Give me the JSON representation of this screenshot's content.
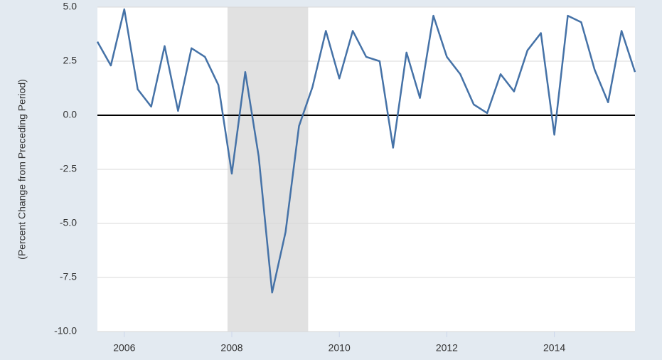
{
  "chart_data": {
    "type": "line",
    "y_label": "(Percent Change from Preceding Period)",
    "x": [
      2005.5,
      2005.75,
      2006,
      2006.25,
      2006.5,
      2006.75,
      2007,
      2007.25,
      2007.5,
      2007.75,
      2008,
      2008.25,
      2008.5,
      2008.75,
      2009,
      2009.25,
      2009.5,
      2009.75,
      2010,
      2010.25,
      2010.5,
      2010.75,
      2011,
      2011.25,
      2011.5,
      2011.75,
      2012,
      2012.25,
      2012.5,
      2012.75,
      2013,
      2013.25,
      2013.5,
      2013.75,
      2014,
      2014.25,
      2014.5,
      2014.75,
      2015,
      2015.25,
      2015.5
    ],
    "series": [
      {
        "color": "#4572a7",
        "values": [
          3.4,
          2.3,
          4.9,
          1.2,
          0.4,
          3.2,
          0.2,
          3.1,
          2.7,
          1.4,
          -2.7,
          2.0,
          -1.9,
          -8.2,
          -5.4,
          -0.5,
          1.3,
          3.9,
          1.7,
          3.9,
          2.7,
          2.5,
          -1.5,
          2.9,
          0.8,
          4.6,
          2.7,
          1.9,
          0.5,
          0.1,
          1.9,
          1.1,
          3.0,
          3.8,
          -0.9,
          4.6,
          4.3,
          2.1,
          0.6,
          3.9,
          2.0
        ]
      }
    ],
    "xlim": [
      2005.5,
      2015.5
    ],
    "xticks": [
      2006,
      2008,
      2010,
      2012,
      2014
    ],
    "ylim": [
      -10,
      5
    ],
    "yticks": [
      {
        "value": 5,
        "label": "5.0"
      },
      {
        "value": 2.5,
        "label": "2.5"
      },
      {
        "value": 0,
        "label": "0.0"
      },
      {
        "value": -2.5,
        "label": "-2.5"
      },
      {
        "value": -5,
        "label": "-5.0"
      },
      {
        "value": -7.5,
        "label": "-7.5"
      },
      {
        "value": -10,
        "label": "-10.0"
      }
    ],
    "shaded_regions": [
      [
        2007.92,
        2009.42
      ]
    ],
    "grid": true,
    "zero_line": true
  }
}
